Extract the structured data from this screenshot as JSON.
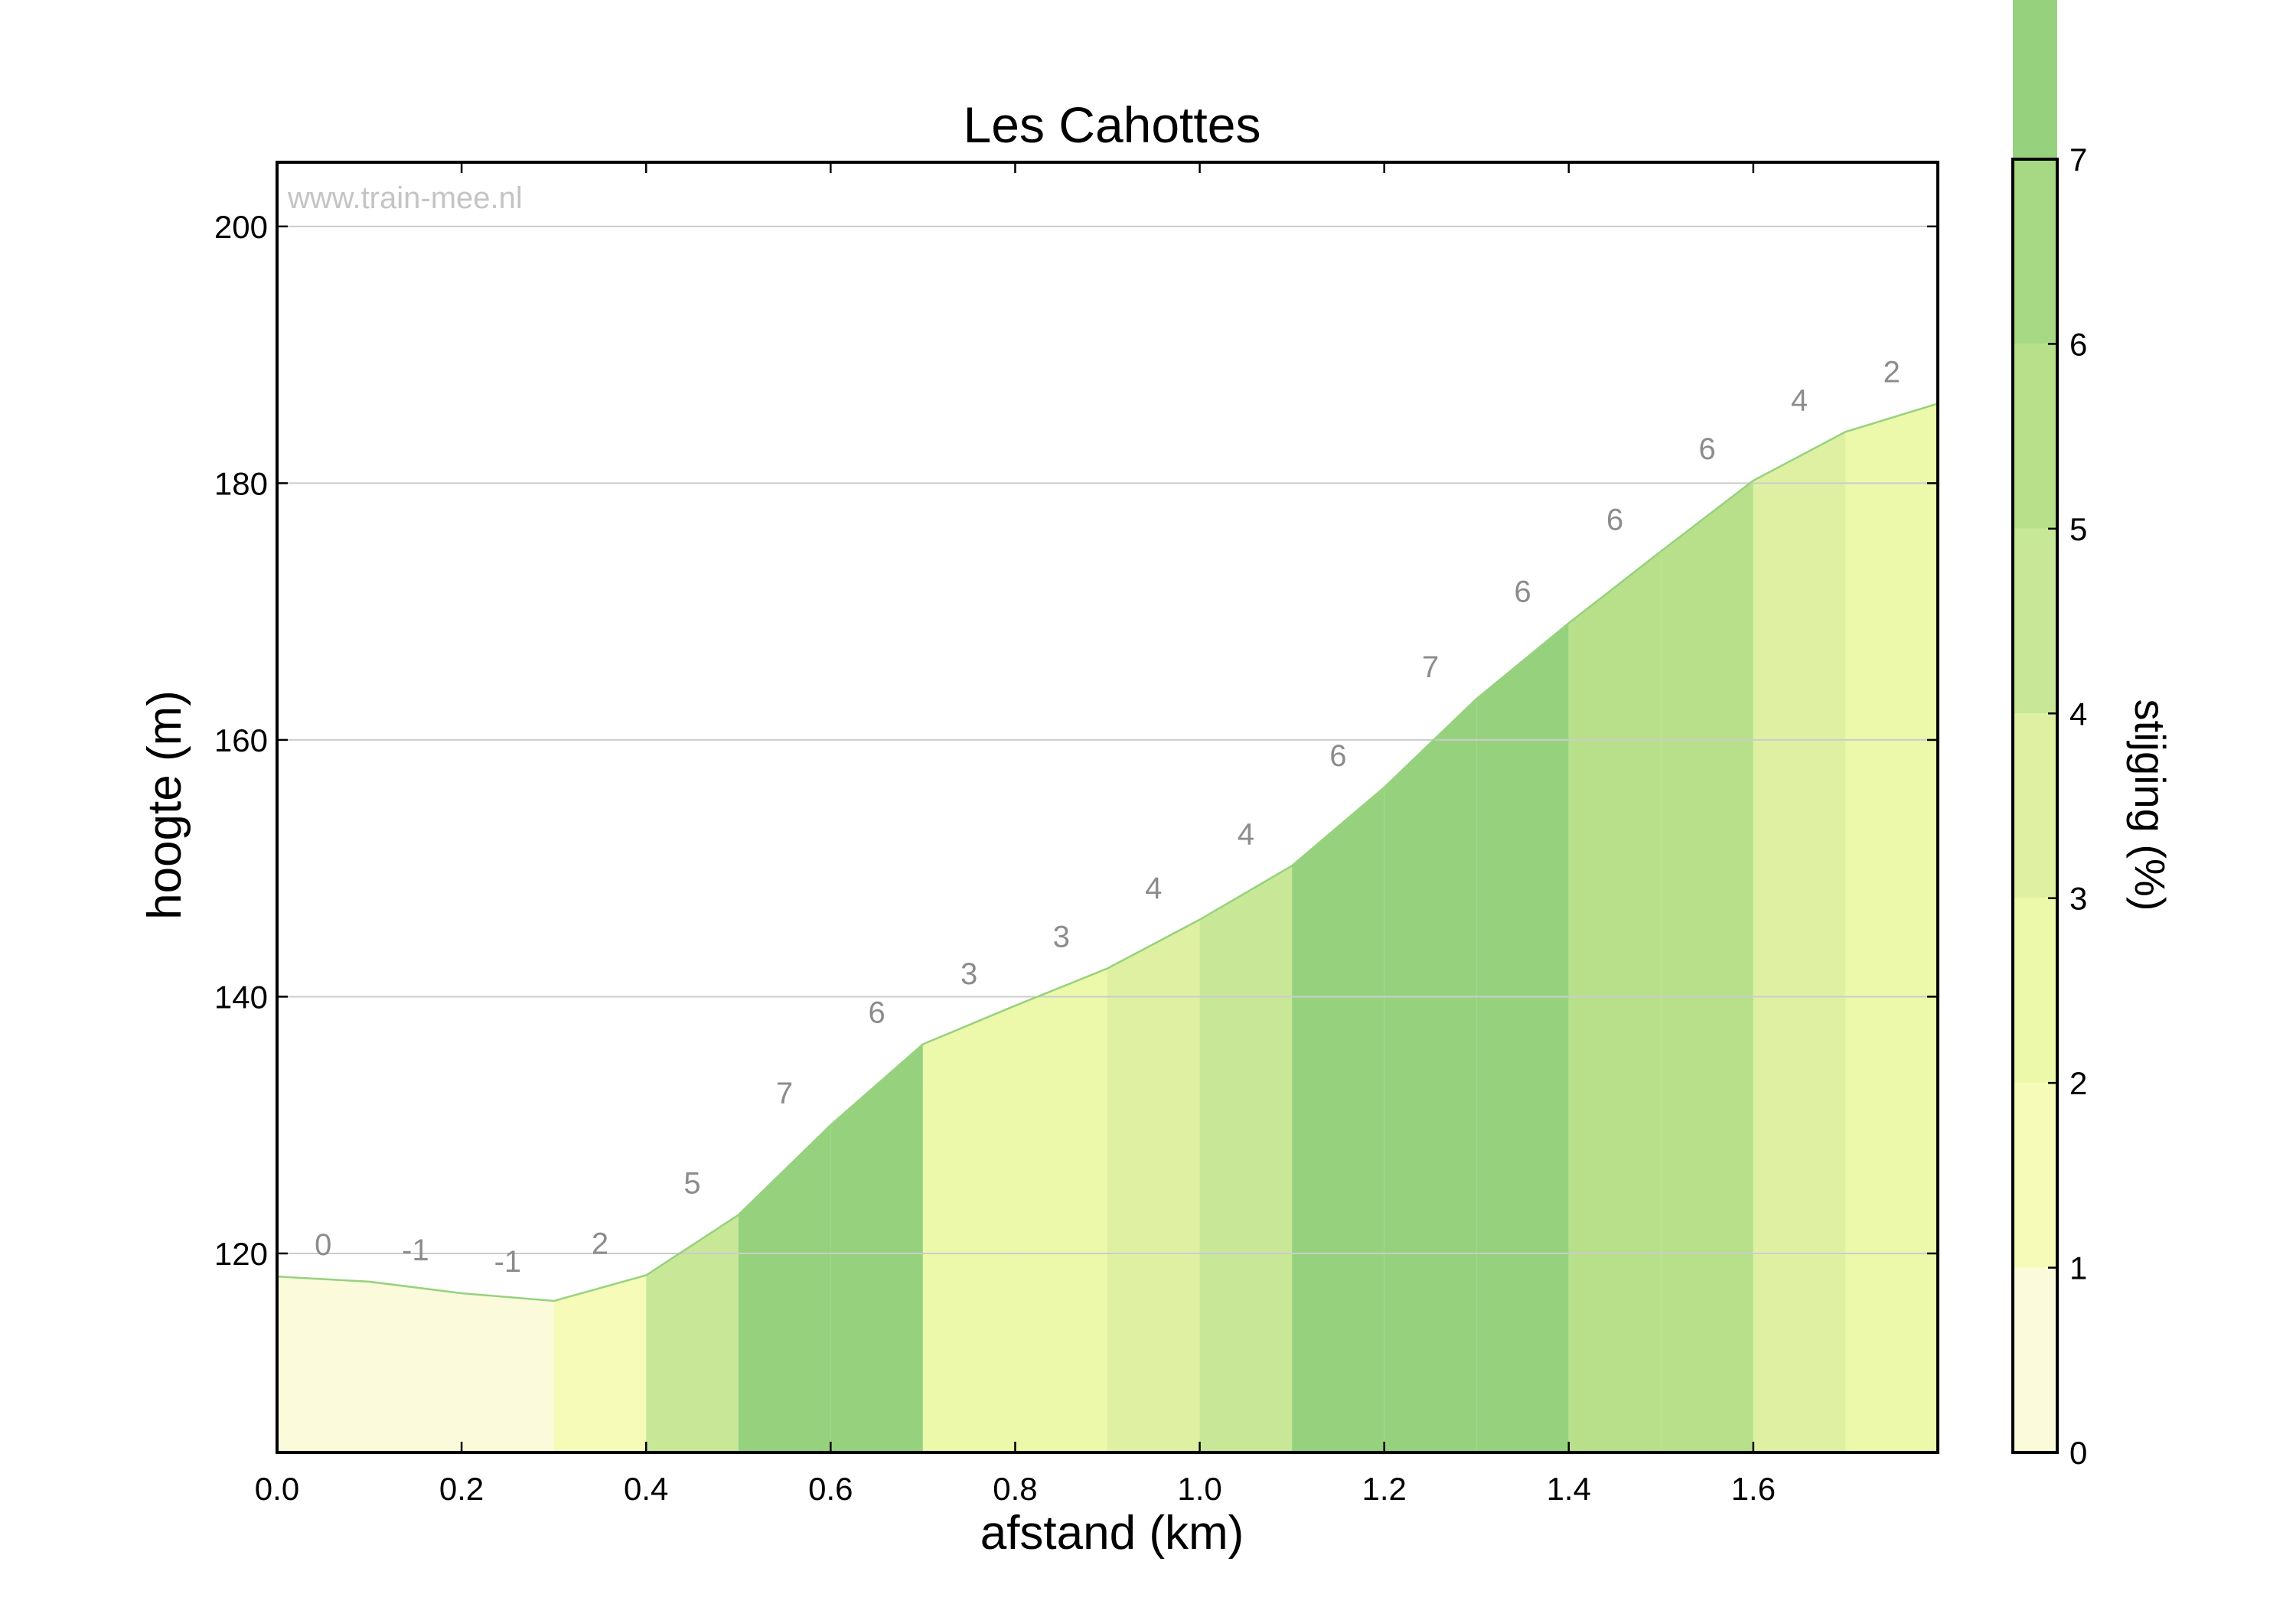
{
  "chart_data": {
    "type": "area",
    "title": "Les Cahottes",
    "xlabel": "afstand (km)",
    "ylabel": "hoogte (m)",
    "watermark": "www.train-mee.nl",
    "xlim": [
      0.0,
      1.8
    ],
    "ylim": [
      104.5,
      205
    ],
    "x_ticks": [
      0.0,
      0.2,
      0.4,
      0.6,
      0.8,
      1.0,
      1.2,
      1.4,
      1.6
    ],
    "x_tick_labels": [
      "0.0",
      "0.2",
      "0.4",
      "0.6",
      "0.8",
      "1.0",
      "1.2",
      "1.4",
      "1.6"
    ],
    "y_ticks": [
      120,
      140,
      160,
      180,
      200
    ],
    "y_tick_labels": [
      "120",
      "140",
      "160",
      "180",
      "200"
    ],
    "grid": "horizontal",
    "profile": {
      "x": [
        0.0,
        0.1,
        0.2,
        0.3,
        0.4,
        0.5,
        0.6,
        0.7,
        0.8,
        0.9,
        1.0,
        1.1,
        1.2,
        1.3,
        1.4,
        1.5,
        1.6,
        1.7,
        1.8
      ],
      "y": [
        118.2,
        117.8,
        116.9,
        116.3,
        118.3,
        123.0,
        130.0,
        136.3,
        139.3,
        142.2,
        146.0,
        150.2,
        156.3,
        163.2,
        169.1,
        174.7,
        180.2,
        184.0,
        186.2
      ]
    },
    "segment_labels": [
      "0",
      "-1",
      "-1",
      "2",
      "5",
      "7",
      "6",
      "3",
      "3",
      "4",
      "4",
      "6",
      "7",
      "6",
      "6",
      "6",
      "4",
      "2"
    ],
    "segment_colors": [
      "#fbfbdc",
      "#fbfbdc",
      "#fbfbdc",
      "#f6fbb7",
      "#c8e898",
      "#96d27e",
      "#96d27e",
      "#ecf8aa",
      "#ecf8aa",
      "#dff0a2",
      "#c8e898",
      "#96d27e",
      "#96d27e",
      "#96d27e",
      "#b8e08b",
      "#b8e08b",
      "#dff0a2",
      "#ecf8aa"
    ],
    "line_color": "#96d27e",
    "colorbar": {
      "label": "stijging (%)",
      "range": [
        0,
        7
      ],
      "ticks": [
        "0",
        "1",
        "2",
        "3",
        "4",
        "5",
        "6",
        "7"
      ],
      "band_colors": [
        "#fbfbdc",
        "#f6fbb7",
        "#ecf8aa",
        "#dff0a2",
        "#c8e898",
        "#b8e08b",
        "#a7d985",
        "#96d27e"
      ]
    }
  }
}
